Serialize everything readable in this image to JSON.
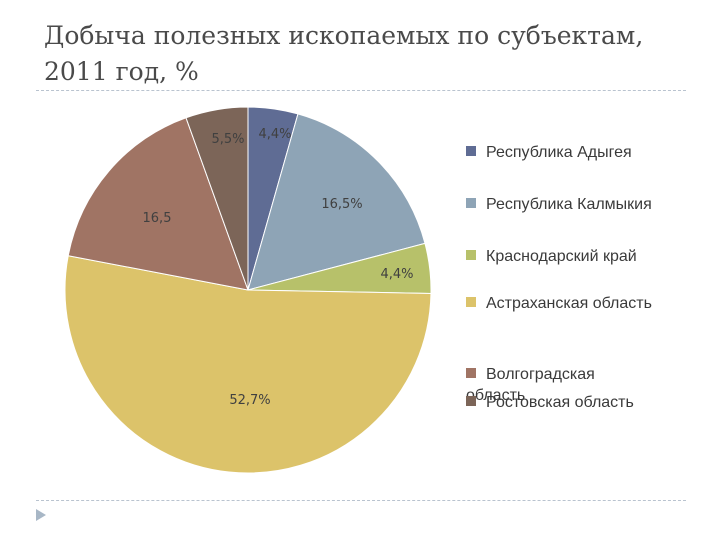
{
  "chart_data": {
    "type": "pie",
    "title": "Добыча полезных ископаемых по субъектам,\n2011 год, %",
    "categories": [
      "Республика Адыгея",
      "Республика Калмыкия",
      "Краснодарский край",
      "Астраханская область",
      "Волгоградская область",
      "Ростовская область"
    ],
    "values": [
      4.4,
      16.5,
      4.4,
      52.7,
      16.5,
      5.5
    ],
    "data_labels": [
      "4,4%",
      "16,5%",
      "4,4%",
      "52,7%",
      "16,5",
      "5,5%"
    ],
    "colors": [
      "#5f6c94",
      "#8ea4b6",
      "#b7c16a",
      "#dcc36a",
      "#a07464",
      "#7c6558"
    ],
    "legend_position": "right"
  },
  "legend": {
    "labels": [
      "Республика Адыгея",
      "Республика Калмыкия",
      "Краснодарский край",
      "Астраханская область",
      "Волгоградская\nобласть",
      "Ростовская область"
    ]
  }
}
